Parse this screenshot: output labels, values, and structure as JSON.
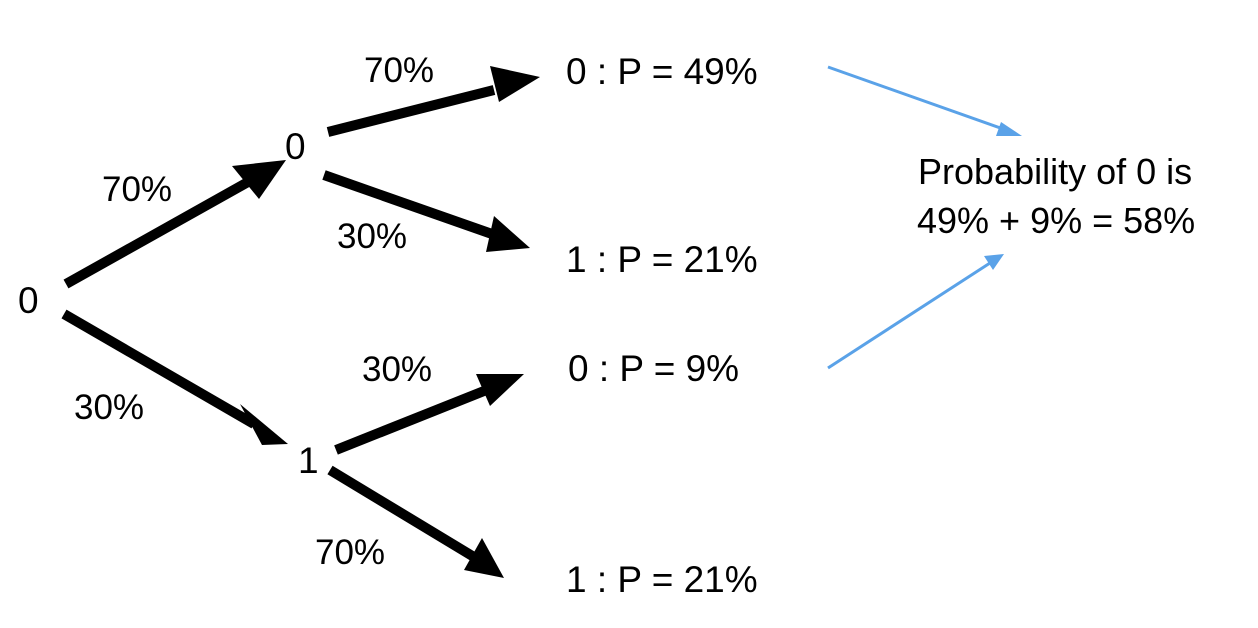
{
  "diagram": {
    "nodes": {
      "root": "0",
      "upper": "0",
      "lower": "1"
    },
    "edge_labels": {
      "root_to_upper": "70%",
      "root_to_lower": "30%",
      "upper_to_leaf1": "70%",
      "upper_to_leaf2": "30%",
      "lower_to_leaf3": "30%",
      "lower_to_leaf4": "70%"
    },
    "leaves": [
      "0 : P = 49%",
      "1 : P = 21%",
      "0 : P = 9%",
      "1 : P = 21%"
    ],
    "summary": {
      "line1": "Probability of 0 is",
      "line2": "49% + 9% = 58%"
    },
    "colors": {
      "arrow": "#000000",
      "summary_arrow": "#5aa2e8",
      "text": "#000000"
    }
  }
}
